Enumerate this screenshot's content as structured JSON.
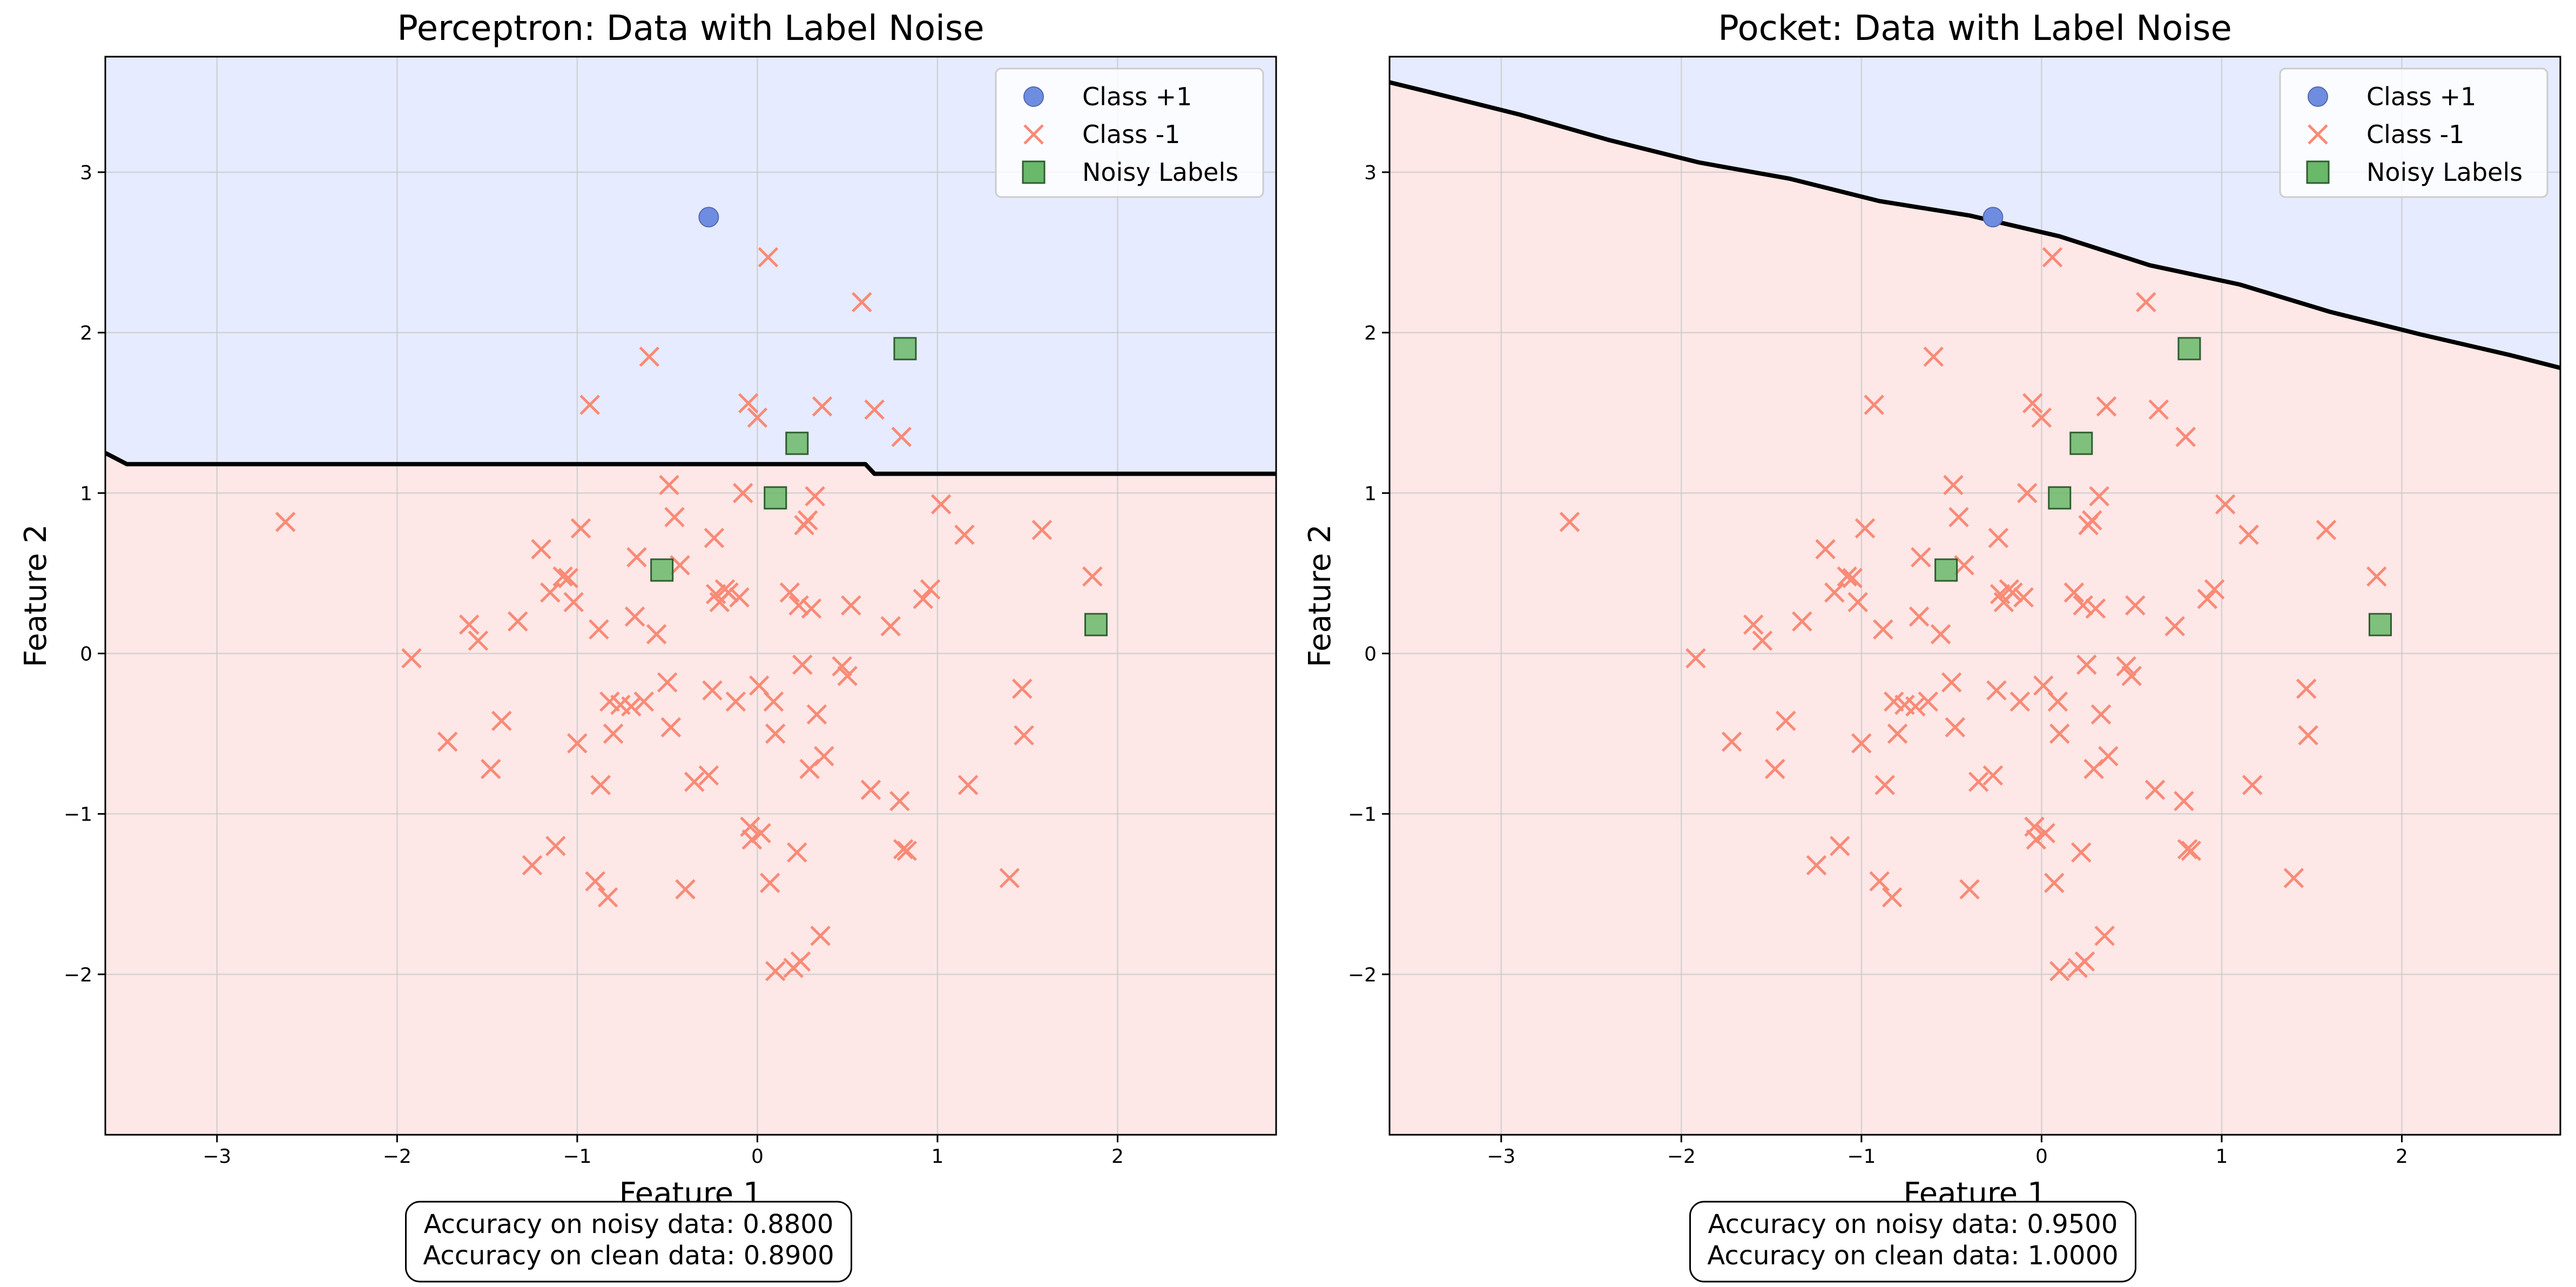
{
  "chart_data": [
    {
      "type": "scatter",
      "title": "Perceptron: Data with Label Noise",
      "xlabel": "Feature 1",
      "ylabel": "Feature 2",
      "xlim": [
        -3.62,
        2.88
      ],
      "ylim": [
        -3.0,
        3.72
      ],
      "xticks": [
        -3,
        -2,
        -1,
        0,
        1,
        2
      ],
      "yticks": [
        -2,
        -1,
        0,
        1,
        2,
        3
      ],
      "grid": true,
      "legend_position": "top-right",
      "legend": [
        "Class +1",
        "Class -1",
        "Noisy Labels"
      ],
      "decision_boundary": [
        [
          -3.62,
          1.25
        ],
        [
          -3.5,
          1.18
        ],
        [
          0.6,
          1.18
        ],
        [
          0.65,
          1.12
        ],
        [
          2.88,
          1.12
        ]
      ],
      "annotation": [
        "Accuracy on noisy data: 0.8800",
        "Accuracy on clean data: 0.8900"
      ]
    },
    {
      "type": "scatter",
      "title": "Pocket: Data with Label Noise",
      "xlabel": "Feature 1",
      "ylabel": "Feature 2",
      "xlim": [
        -3.62,
        2.88
      ],
      "ylim": [
        -3.0,
        3.72
      ],
      "xticks": [
        -3,
        -2,
        -1,
        0,
        1,
        2
      ],
      "yticks": [
        -2,
        -1,
        0,
        1,
        2,
        3
      ],
      "grid": true,
      "legend_position": "top-right",
      "legend": [
        "Class +1",
        "Class -1",
        "Noisy Labels"
      ],
      "decision_boundary": [
        [
          -3.62,
          3.56
        ],
        [
          -3.4,
          3.5
        ],
        [
          -2.9,
          3.36
        ],
        [
          -2.4,
          3.2
        ],
        [
          -1.9,
          3.06
        ],
        [
          -1.4,
          2.96
        ],
        [
          -0.9,
          2.82
        ],
        [
          -0.4,
          2.73
        ],
        [
          0.1,
          2.6
        ],
        [
          0.6,
          2.42
        ],
        [
          1.1,
          2.3
        ],
        [
          1.6,
          2.13
        ],
        [
          2.1,
          1.99
        ],
        [
          2.6,
          1.86
        ],
        [
          2.88,
          1.78
        ]
      ],
      "annotation": [
        "Accuracy on noisy data: 0.9500",
        "Accuracy on clean data: 1.0000"
      ]
    }
  ],
  "shared_points": {
    "class_pos": [
      [
        -0.27,
        2.72
      ]
    ],
    "class_neg": [
      [
        -2.62,
        0.82
      ],
      [
        -1.92,
        -0.03
      ],
      [
        -1.72,
        -0.55
      ],
      [
        -1.6,
        0.18
      ],
      [
        -1.55,
        0.08
      ],
      [
        -1.48,
        -0.72
      ],
      [
        -1.42,
        -0.42
      ],
      [
        -1.33,
        0.2
      ],
      [
        -1.25,
        -1.32
      ],
      [
        -1.2,
        0.65
      ],
      [
        -1.15,
        0.38
      ],
      [
        -1.12,
        -1.2
      ],
      [
        -1.08,
        0.48
      ],
      [
        -1.05,
        0.47
      ],
      [
        -1.02,
        0.32
      ],
      [
        -1.0,
        -0.56
      ],
      [
        -0.98,
        0.78
      ],
      [
        -0.93,
        1.55
      ],
      [
        -0.9,
        -1.42
      ],
      [
        -0.88,
        0.15
      ],
      [
        -0.87,
        -0.82
      ],
      [
        -0.83,
        -1.52
      ],
      [
        -0.82,
        -0.3
      ],
      [
        -0.8,
        -0.5
      ],
      [
        -0.76,
        -0.32
      ],
      [
        -0.7,
        -0.33
      ],
      [
        -0.68,
        0.23
      ],
      [
        -0.67,
        0.6
      ],
      [
        -0.63,
        -0.3
      ],
      [
        -0.6,
        1.85
      ],
      [
        -0.56,
        0.12
      ],
      [
        -0.5,
        -0.18
      ],
      [
        -0.49,
        1.05
      ],
      [
        -0.48,
        -0.46
      ],
      [
        -0.46,
        0.85
      ],
      [
        -0.43,
        0.55
      ],
      [
        -0.4,
        -1.47
      ],
      [
        -0.35,
        -0.8
      ],
      [
        -0.27,
        -0.76
      ],
      [
        -0.25,
        -0.23
      ],
      [
        -0.24,
        0.72
      ],
      [
        -0.23,
        0.37
      ],
      [
        -0.21,
        0.32
      ],
      [
        -0.18,
        0.4
      ],
      [
        -0.16,
        0.38
      ],
      [
        -0.12,
        -0.3
      ],
      [
        -0.1,
        0.35
      ],
      [
        -0.08,
        1.0
      ],
      [
        -0.05,
        1.56
      ],
      [
        -0.04,
        -1.08
      ],
      [
        -0.03,
        -1.16
      ],
      [
        0.0,
        1.47
      ],
      [
        0.01,
        -0.2
      ],
      [
        0.02,
        -1.12
      ],
      [
        0.06,
        2.47
      ],
      [
        0.07,
        -1.43
      ],
      [
        0.09,
        -0.3
      ],
      [
        0.1,
        -0.5
      ],
      [
        0.1,
        -1.98
      ],
      [
        0.18,
        0.38
      ],
      [
        0.2,
        -1.96
      ],
      [
        0.22,
        -1.24
      ],
      [
        0.23,
        0.3
      ],
      [
        0.24,
        -1.92
      ],
      [
        0.25,
        -0.07
      ],
      [
        0.26,
        0.8
      ],
      [
        0.28,
        0.83
      ],
      [
        0.29,
        -0.72
      ],
      [
        0.3,
        0.28
      ],
      [
        0.32,
        0.98
      ],
      [
        0.33,
        -0.38
      ],
      [
        0.35,
        -1.76
      ],
      [
        0.36,
        1.54
      ],
      [
        0.37,
        -0.64
      ],
      [
        0.47,
        -0.08
      ],
      [
        0.5,
        -0.14
      ],
      [
        0.52,
        0.3
      ],
      [
        0.58,
        2.19
      ],
      [
        0.63,
        -0.85
      ],
      [
        0.65,
        1.52
      ],
      [
        0.74,
        0.17
      ],
      [
        0.79,
        -0.92
      ],
      [
        0.8,
        1.35
      ],
      [
        0.81,
        -1.22
      ],
      [
        0.83,
        -1.23
      ],
      [
        0.92,
        0.34
      ],
      [
        0.96,
        0.4
      ],
      [
        1.02,
        0.93
      ],
      [
        1.15,
        0.74
      ],
      [
        1.17,
        -0.82
      ],
      [
        1.4,
        -1.4
      ],
      [
        1.47,
        -0.22
      ],
      [
        1.48,
        -0.51
      ],
      [
        1.58,
        0.77
      ],
      [
        1.86,
        0.48
      ]
    ],
    "noisy": [
      [
        0.82,
        1.9
      ],
      [
        0.22,
        1.31
      ],
      [
        0.1,
        0.97
      ],
      [
        -0.53,
        0.52
      ],
      [
        1.88,
        0.18
      ]
    ]
  },
  "colors": {
    "class_pos": "#6f8de0",
    "class_neg": "#f98a76",
    "noisy_fill": "#6ab86a",
    "noisy_edge": "#2e5e2e",
    "region_pos": "#e6ebff",
    "region_neg": "#fde7e7",
    "boundary": "#000000",
    "grid": "#c8c8c8"
  }
}
